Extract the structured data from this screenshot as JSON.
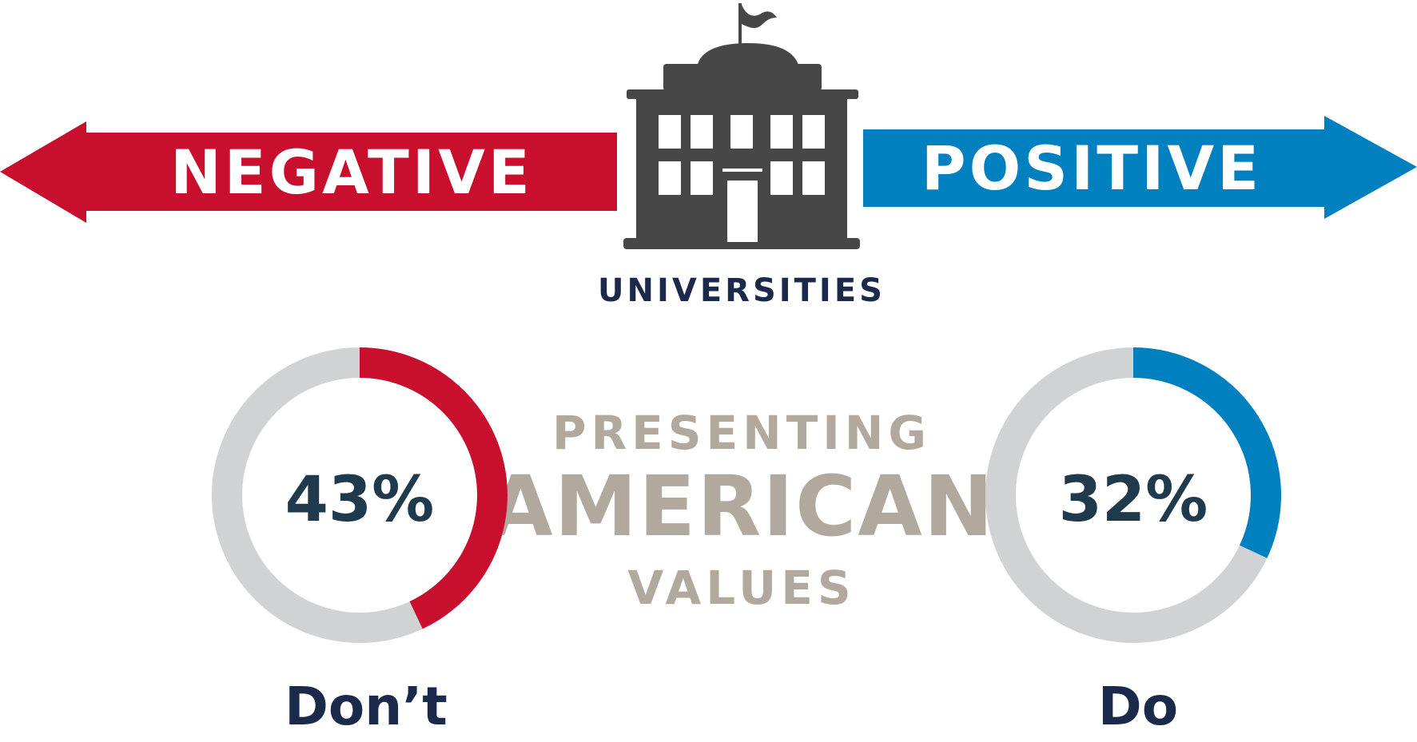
{
  "colors": {
    "negative": "#C8102E",
    "positive": "#0080BF",
    "building": "#474747",
    "track": "#D1D2D4",
    "dark_navy": "#1B2A4A",
    "pct_text": "#1F3A4D",
    "center_text": "#B2A99E",
    "white": "#FFFFFF"
  },
  "icons": {
    "building": "university-building-icon",
    "left_arrow": "left-arrow-icon",
    "right_arrow": "right-arrow-icon"
  },
  "scale": {
    "left_label": "NEGATIVE",
    "right_label": "POSITIVE",
    "center_label": "UNIVERSITIES"
  },
  "center_text": {
    "line1": "PRESENTING",
    "line2": "AMERICAN",
    "line3": "VALUES"
  },
  "chart_data": [
    {
      "type": "pie",
      "subtype": "donut",
      "label": "Don't",
      "display_label": "Don’t",
      "value": 43,
      "value_label": "43%",
      "max": 100,
      "color": "#C8102E",
      "track_color": "#D1D2D4"
    },
    {
      "type": "pie",
      "subtype": "donut",
      "label": "Do",
      "display_label": "Do",
      "value": 32,
      "value_label": "32%",
      "max": 100,
      "color": "#0080BF",
      "track_color": "#D1D2D4"
    }
  ]
}
